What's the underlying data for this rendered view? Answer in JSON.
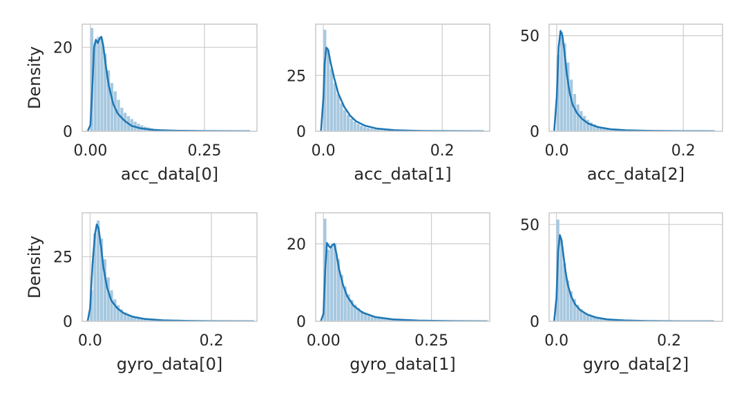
{
  "colors": {
    "kde": "#1f77b4",
    "hist": "#a6c8e0",
    "grid": "#cccccc",
    "frame": "#cccccc"
  },
  "chart_data": [
    {
      "type": "area",
      "xlabel": "acc_data[0]",
      "ylabel": "Density",
      "xlim": [
        -0.018,
        0.365
      ],
      "ylim": [
        0,
        25.5
      ],
      "xticks": [
        {
          "v": 0.0,
          "label": "0.00"
        },
        {
          "v": 0.25,
          "label": "0.25"
        }
      ],
      "yticks": [
        {
          "v": 0,
          "label": "0"
        },
        {
          "v": 20,
          "label": "20"
        }
      ],
      "hist": {
        "x0": 0.0,
        "bin_width": 0.0073,
        "values": [
          24.6,
          21.0,
          22.5,
          22.0,
          18.5,
          14.5,
          11.5,
          9.5,
          7.5,
          5.6,
          4.4,
          3.6,
          2.9,
          2.3,
          1.8,
          1.4,
          1.1,
          0.9,
          0.7,
          0.6,
          0.5,
          0.4,
          0.35,
          0.3,
          0.25,
          0.22,
          0.2,
          0.18,
          0.15,
          0.13,
          0.12,
          0.1,
          0.1,
          0.09,
          0.08,
          0.07,
          0.07,
          0.06,
          0.06,
          0.05,
          0.05,
          0.05,
          0.04,
          0.04,
          0.04,
          0.03,
          0.03,
          0.03,
          0.02
        ]
      },
      "kde": {
        "x": [
          -0.006,
          0.0,
          0.004,
          0.008,
          0.012,
          0.016,
          0.02,
          0.024,
          0.028,
          0.034,
          0.04,
          0.05,
          0.06,
          0.075,
          0.09,
          0.11,
          0.14,
          0.18,
          0.25,
          0.35
        ],
        "y": [
          0.0,
          1.5,
          10.0,
          20.0,
          21.8,
          21.0,
          22.0,
          22.5,
          20.5,
          15.5,
          11.0,
          6.5,
          4.2,
          2.5,
          1.3,
          0.7,
          0.3,
          0.15,
          0.05,
          0.02
        ]
      }
    },
    {
      "type": "area",
      "xlabel": "acc_data[1]",
      "ylabel": "",
      "xlim": [
        -0.013,
        0.28
      ],
      "ylim": [
        0,
        48
      ],
      "xticks": [
        {
          "v": 0.0,
          "label": "0.0"
        },
        {
          "v": 0.2,
          "label": "0.2"
        }
      ],
      "yticks": [
        {
          "v": 0,
          "label": "0"
        },
        {
          "v": 25,
          "label": "25"
        }
      ],
      "hist": {
        "x0": 0.0,
        "bin_width": 0.0056,
        "values": [
          45.5,
          36.0,
          28.0,
          21.5,
          16.5,
          12.5,
          9.5,
          7.3,
          5.6,
          4.3,
          3.3,
          2.5,
          1.9,
          1.5,
          1.2,
          0.9,
          0.7,
          0.55,
          0.45,
          0.37,
          0.3,
          0.25,
          0.2,
          0.17,
          0.15,
          0.13,
          0.11,
          0.1,
          0.09,
          0.08,
          0.07,
          0.06,
          0.06,
          0.05,
          0.05,
          0.04,
          0.04,
          0.04,
          0.03,
          0.03,
          0.03,
          0.03,
          0.02,
          0.02,
          0.02,
          0.02,
          0.02,
          0.01
        ]
      },
      "kde": {
        "x": [
          -0.004,
          0.0,
          0.002,
          0.005,
          0.008,
          0.012,
          0.018,
          0.025,
          0.035,
          0.045,
          0.055,
          0.07,
          0.09,
          0.12,
          0.16,
          0.2,
          0.27
        ],
        "y": [
          0.0,
          15.0,
          30.0,
          37.5,
          36.5,
          31.0,
          24.0,
          17.0,
          11.0,
          7.0,
          4.5,
          2.5,
          1.2,
          0.5,
          0.2,
          0.08,
          0.02
        ]
      }
    },
    {
      "type": "area",
      "xlabel": "acc_data[2]",
      "ylabel": "",
      "xlim": [
        -0.012,
        0.262
      ],
      "ylim": [
        0,
        56
      ],
      "xticks": [
        {
          "v": 0.0,
          "label": "0.0"
        },
        {
          "v": 0.2,
          "label": "0.2"
        }
      ],
      "yticks": [
        {
          "v": 0,
          "label": "0"
        },
        {
          "v": 50,
          "label": "50"
        }
      ],
      "hist": {
        "x0": 0.0,
        "bin_width": 0.0052,
        "values": [
          40.0,
          52.0,
          46.0,
          36.0,
          27.0,
          19.5,
          14.0,
          10.5,
          8.0,
          6.0,
          4.6,
          3.6,
          2.8,
          2.2,
          1.7,
          1.3,
          1.0,
          0.8,
          0.65,
          0.5,
          0.4,
          0.33,
          0.27,
          0.22,
          0.18,
          0.15,
          0.12,
          0.1,
          0.09,
          0.08,
          0.07,
          0.06,
          0.05,
          0.05,
          0.04,
          0.04,
          0.04,
          0.03,
          0.03,
          0.03,
          0.02,
          0.02,
          0.02,
          0.02,
          0.02,
          0.01,
          0.01,
          0.01
        ]
      },
      "kde": {
        "x": [
          -0.004,
          0.0,
          0.003,
          0.006,
          0.009,
          0.012,
          0.016,
          0.02,
          0.025,
          0.032,
          0.04,
          0.05,
          0.065,
          0.085,
          0.11,
          0.15,
          0.2,
          0.25
        ],
        "y": [
          0.0,
          18.0,
          44.0,
          52.5,
          50.0,
          42.0,
          30.0,
          21.0,
          14.0,
          9.5,
          6.5,
          4.0,
          2.2,
          1.1,
          0.5,
          0.2,
          0.07,
          0.02
        ]
      }
    },
    {
      "type": "area",
      "xlabel": "gyro_data[0]",
      "ylabel": "Density",
      "xlim": [
        -0.013,
        0.275
      ],
      "ylim": [
        0,
        42
      ],
      "xticks": [
        {
          "v": 0.0,
          "label": "0.0"
        },
        {
          "v": 0.2,
          "label": "0.2"
        }
      ],
      "yticks": [
        {
          "v": 0,
          "label": "0"
        },
        {
          "v": 25,
          "label": "25"
        }
      ],
      "hist": {
        "x0": 0.0,
        "bin_width": 0.0055,
        "values": [
          12.0,
          34.0,
          39.0,
          32.0,
          24.0,
          17.0,
          12.0,
          8.5,
          6.2,
          4.6,
          3.4,
          2.6,
          2.0,
          1.5,
          1.2,
          0.9,
          0.7,
          0.6,
          0.5,
          0.4,
          0.33,
          0.27,
          0.22,
          0.18,
          0.15,
          0.13,
          0.11,
          0.1,
          0.09,
          0.08,
          0.07,
          0.06,
          0.05,
          0.05,
          0.04,
          0.04,
          0.03,
          0.03,
          0.03,
          0.03,
          0.02,
          0.02,
          0.02,
          0.02,
          0.02,
          0.01,
          0.01,
          0.01
        ]
      },
      "kde": {
        "x": [
          -0.004,
          0.0,
          0.004,
          0.008,
          0.011,
          0.014,
          0.018,
          0.022,
          0.028,
          0.035,
          0.045,
          0.055,
          0.07,
          0.09,
          0.12,
          0.16,
          0.2,
          0.27
        ],
        "y": [
          0.0,
          5.0,
          22.0,
          33.5,
          37.5,
          36.0,
          29.0,
          21.0,
          13.0,
          8.0,
          5.0,
          3.2,
          1.8,
          0.9,
          0.4,
          0.15,
          0.06,
          0.02
        ]
      }
    },
    {
      "type": "area",
      "xlabel": "gyro_data[1]",
      "ylabel": "",
      "xlim": [
        -0.018,
        0.385
      ],
      "ylim": [
        0,
        28
      ],
      "xticks": [
        {
          "v": 0.0,
          "label": "0.00"
        },
        {
          "v": 0.25,
          "label": "0.25"
        }
      ],
      "yticks": [
        {
          "v": 0,
          "label": "0"
        },
        {
          "v": 20,
          "label": "20"
        }
      ],
      "hist": {
        "x0": 0.0,
        "bin_width": 0.0078,
        "values": [
          26.5,
          18.5,
          19.5,
          20.0,
          16.0,
          12.0,
          9.0,
          7.0,
          5.5,
          4.3,
          3.4,
          2.7,
          2.1,
          1.7,
          1.3,
          1.0,
          0.8,
          0.65,
          0.5,
          0.4,
          0.33,
          0.27,
          0.22,
          0.18,
          0.15,
          0.13,
          0.11,
          0.1,
          0.09,
          0.08,
          0.07,
          0.06,
          0.06,
          0.05,
          0.05,
          0.04,
          0.04,
          0.04,
          0.03,
          0.03,
          0.03,
          0.03,
          0.02,
          0.02,
          0.02,
          0.02,
          0.02,
          0.01
        ]
      },
      "kde": {
        "x": [
          -0.006,
          0.0,
          0.004,
          0.008,
          0.012,
          0.016,
          0.02,
          0.025,
          0.03,
          0.036,
          0.045,
          0.055,
          0.07,
          0.09,
          0.12,
          0.16,
          0.22,
          0.3,
          0.38
        ],
        "y": [
          0.0,
          2.0,
          13.0,
          20.2,
          19.5,
          19.0,
          19.6,
          20.0,
          17.5,
          13.5,
          9.5,
          6.5,
          4.0,
          2.3,
          1.1,
          0.5,
          0.2,
          0.06,
          0.02
        ]
      }
    },
    {
      "type": "area",
      "xlabel": "gyro_data[2]",
      "ylabel": "",
      "xlim": [
        -0.013,
        0.295
      ],
      "ylim": [
        0,
        56
      ],
      "xticks": [
        {
          "v": 0.0,
          "label": "0.0"
        },
        {
          "v": 0.2,
          "label": "0.2"
        }
      ],
      "yticks": [
        {
          "v": 0,
          "label": "0"
        },
        {
          "v": 50,
          "label": "50"
        }
      ],
      "hist": {
        "x0": 0.0,
        "bin_width": 0.0059,
        "values": [
          52.5,
          42.0,
          30.0,
          21.0,
          15.5,
          11.5,
          8.5,
          6.3,
          4.7,
          3.6,
          2.8,
          2.2,
          1.7,
          1.3,
          1.0,
          0.8,
          0.65,
          0.5,
          0.4,
          0.33,
          0.27,
          0.22,
          0.18,
          0.15,
          0.13,
          0.11,
          0.1,
          0.09,
          0.08,
          0.07,
          0.06,
          0.06,
          0.05,
          0.05,
          0.04,
          0.04,
          0.04,
          0.03,
          0.03,
          0.03,
          0.03,
          0.02,
          0.02,
          0.02,
          0.02,
          0.02,
          0.01,
          0.01
        ]
      },
      "kde": {
        "x": [
          -0.004,
          0.0,
          0.003,
          0.006,
          0.009,
          0.012,
          0.016,
          0.02,
          0.026,
          0.033,
          0.042,
          0.055,
          0.07,
          0.09,
          0.12,
          0.16,
          0.22,
          0.28
        ],
        "y": [
          0.0,
          12.0,
          36.0,
          44.5,
          42.0,
          35.0,
          26.0,
          19.0,
          13.0,
          8.8,
          5.8,
          3.5,
          2.0,
          1.0,
          0.45,
          0.18,
          0.05,
          0.02
        ]
      }
    }
  ]
}
